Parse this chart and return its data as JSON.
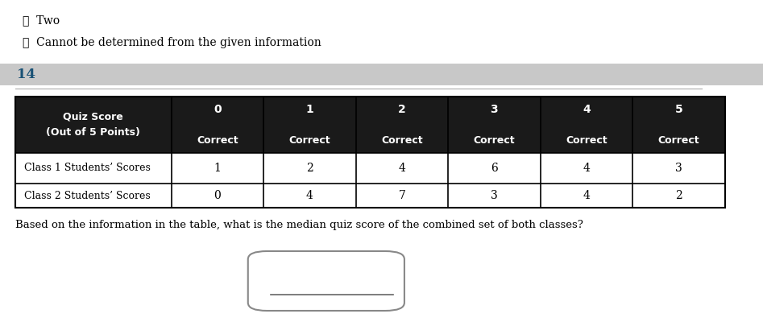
{
  "option_c_text": "Ⓒ  Two",
  "option_d_text": "ⓓ  Cannot be determined from the given information",
  "question_number": "14",
  "question_number_color": "#1a5276",
  "header_bg_color": "#c8c8c8",
  "table_header_bg": "#1a1a1a",
  "table_header_text_color": "#ffffff",
  "table_border_color": "#000000",
  "row1_label": "Class 1 Students’ Scores",
  "row1_values": [
    1,
    2,
    4,
    6,
    4,
    3
  ],
  "row2_label": "Class 2 Students’ Scores",
  "row2_values": [
    0,
    4,
    7,
    3,
    4,
    2
  ],
  "question_text": "Based on the information in the table, what is the median quiz score of the combined set of both classes?",
  "col_nums": [
    "0",
    "1",
    "2",
    "3",
    "4",
    "5"
  ],
  "col_correct": [
    "Correct",
    "Correct",
    "Correct",
    "Correct",
    "Correct",
    "Correct"
  ]
}
